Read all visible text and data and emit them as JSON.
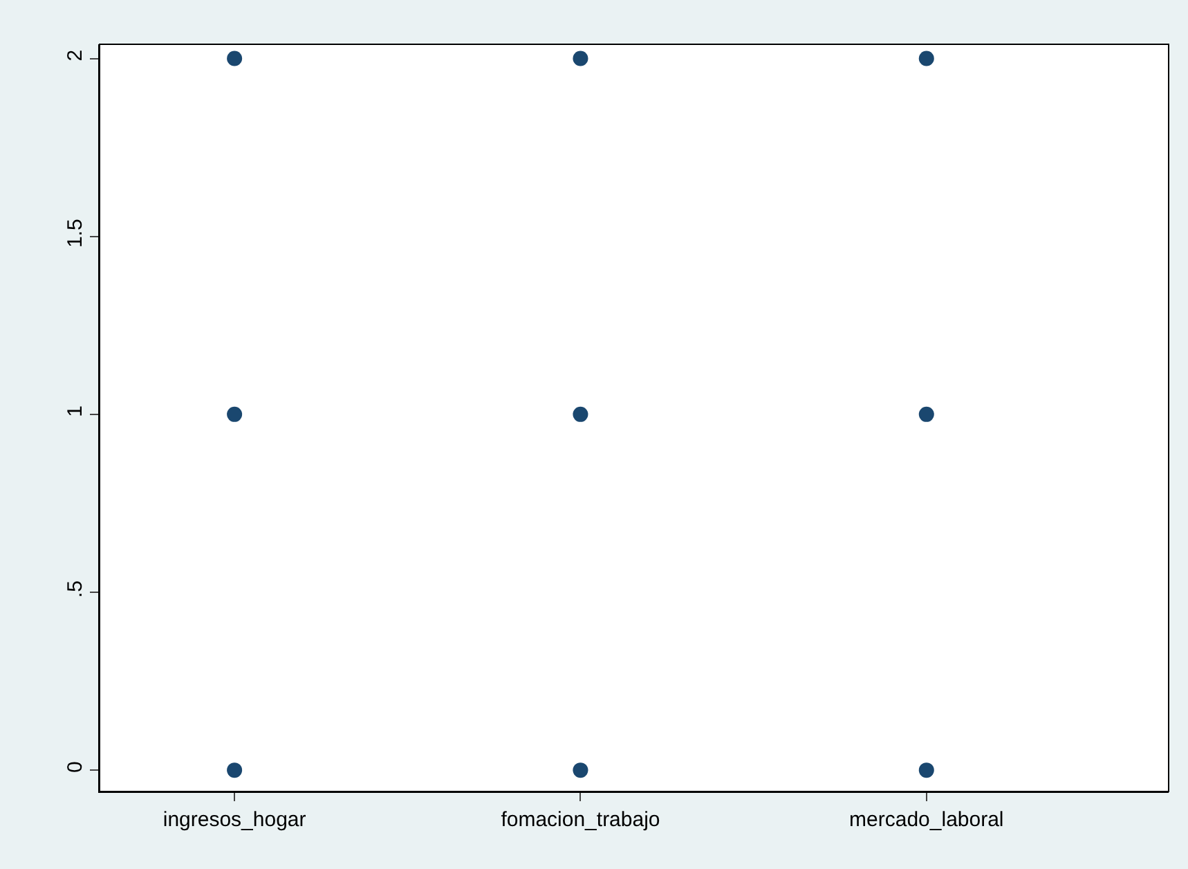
{
  "chart_data": {
    "type": "scatter",
    "marker": "circle",
    "categories": [
      "ingresos_hogar",
      "fomacion_trabajo",
      "mercado_laboral"
    ],
    "ylim": [
      -0.06,
      2.04
    ],
    "yticks": [
      {
        "value": 0,
        "label": "0"
      },
      {
        "value": 0.5,
        "label": ".5"
      },
      {
        "value": 1,
        "label": "1"
      },
      {
        "value": 1.5,
        "label": "1.5"
      },
      {
        "value": 2,
        "label": "2"
      }
    ],
    "series": [
      {
        "color": "#1a476f",
        "x": [
          "ingresos_hogar",
          "ingresos_hogar",
          "ingresos_hogar",
          "fomacion_trabajo",
          "fomacion_trabajo",
          "fomacion_trabajo",
          "mercado_laboral",
          "mercado_laboral",
          "mercado_laboral"
        ],
        "values": [
          0,
          1,
          2,
          0,
          1,
          2,
          0,
          1,
          2
        ]
      }
    ]
  }
}
